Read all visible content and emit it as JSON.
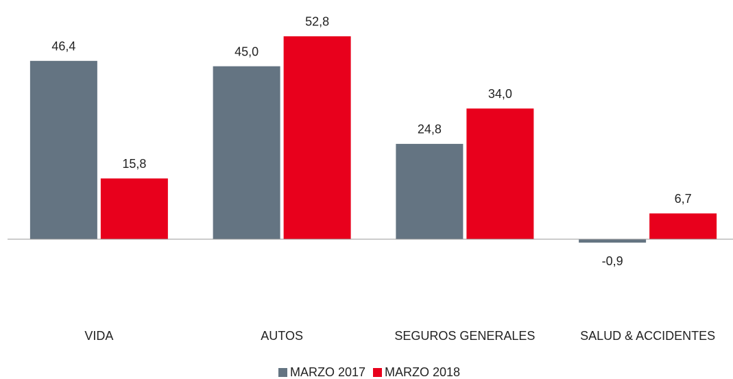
{
  "chart_data": {
    "type": "bar",
    "categories": [
      "VIDA",
      "AUTOS",
      "SEGUROS GENERALES",
      "SALUD & ACCIDENTES"
    ],
    "series": [
      {
        "name": "MARZO 2017",
        "color": "#647482",
        "values": [
          46.4,
          45.0,
          24.8,
          -0.9
        ],
        "value_labels": [
          "46,4",
          "45,0",
          "24,8",
          "-0,9"
        ]
      },
      {
        "name": "MARZO 2018",
        "color": "#e8001c",
        "values": [
          15.8,
          52.8,
          34.0,
          6.7
        ],
        "value_labels": [
          "15,8",
          "52,8",
          "34,0",
          "6,7"
        ]
      }
    ],
    "ylim": [
      -6,
      56
    ],
    "legend": "bottom"
  }
}
